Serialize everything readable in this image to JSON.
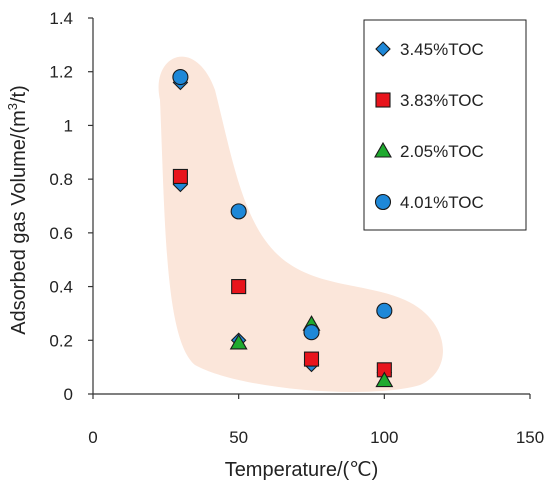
{
  "chart_data": {
    "type": "scatter",
    "xlabel": "Temperature/(℃)",
    "ylabel_parts": [
      "Adsorbed gas Volume/(m",
      "3",
      "/t)"
    ],
    "xlim": [
      0,
      150
    ],
    "ylim": [
      0,
      1.4
    ],
    "xticks": [
      "0",
      "50",
      "100",
      "150"
    ],
    "yticks": [
      "0",
      "0.2",
      "0.4",
      "0.6",
      "0.8",
      "1",
      "1.2",
      "1.4"
    ],
    "grid": false,
    "legend_position": "top-right",
    "shaded_region": true,
    "series": [
      {
        "name": "3.45%TOC",
        "marker": "diamond",
        "color": "#1e88d8",
        "points": [
          {
            "x": 30,
            "y": 1.16
          },
          {
            "x": 30,
            "y": 0.78
          },
          {
            "x": 50,
            "y": 0.2
          },
          {
            "x": 75,
            "y": 0.11
          },
          {
            "x": 100,
            "y": 0.08
          }
        ]
      },
      {
        "name": "3.83%TOC",
        "marker": "square",
        "color": "#e8141c",
        "points": [
          {
            "x": 30,
            "y": 0.81
          },
          {
            "x": 50,
            "y": 0.4
          },
          {
            "x": 75,
            "y": 0.13
          },
          {
            "x": 100,
            "y": 0.09
          }
        ]
      },
      {
        "name": "2.05%TOC",
        "marker": "triangle",
        "color": "#1faa2f",
        "points": [
          {
            "x": 50,
            "y": 0.19
          },
          {
            "x": 75,
            "y": 0.26
          },
          {
            "x": 100,
            "y": 0.05
          }
        ]
      },
      {
        "name": "4.01%TOC",
        "marker": "circle",
        "color": "#1e88d8",
        "points": [
          {
            "x": 30,
            "y": 1.18
          },
          {
            "x": 50,
            "y": 0.68
          },
          {
            "x": 75,
            "y": 0.23
          },
          {
            "x": 100,
            "y": 0.31
          }
        ]
      }
    ],
    "shade_color": "#fbe6da"
  }
}
